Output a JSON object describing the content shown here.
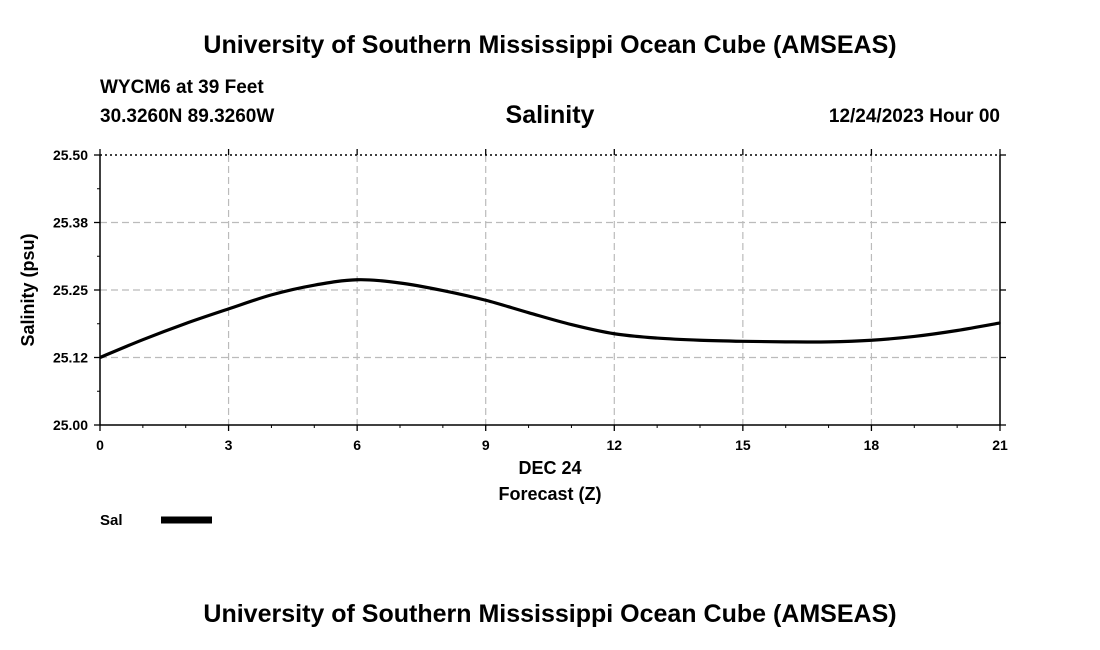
{
  "header": {
    "title": "University of Southern Mississippi Ocean Cube (AMSEAS)",
    "station_line": "WYCM6 at 39 Feet",
    "coords": "30.3260N  89.3260W",
    "datetime": "12/24/2023 Hour 00"
  },
  "footer": {
    "title": "University of Southern Mississippi Ocean Cube (AMSEAS)"
  },
  "chart_data": {
    "type": "line",
    "title": "Salinity",
    "xlabel": "Forecast (Z)",
    "xsublabel": "DEC 24",
    "ylabel": "Salinity (psu)",
    "xlim": [
      0,
      21
    ],
    "ylim": [
      25.0,
      25.5
    ],
    "xticks": [
      0,
      3,
      6,
      9,
      12,
      15,
      18,
      21
    ],
    "xtick_labels": [
      "0",
      "3",
      "6",
      "9",
      "12",
      "15",
      "18",
      "21"
    ],
    "yticks": [
      25.0,
      25.125,
      25.25,
      25.375,
      25.5
    ],
    "ytick_labels": [
      "25.00",
      "25.12",
      "25.25",
      "25.38",
      "25.50"
    ],
    "grid": true,
    "series": [
      {
        "name": "Sal",
        "color": "#000000",
        "x": [
          0,
          1,
          2,
          3,
          4,
          5,
          6,
          7,
          8,
          9,
          10,
          11,
          12,
          13,
          14,
          15,
          16,
          17,
          18,
          19,
          20,
          21
        ],
        "values": [
          25.125,
          25.158,
          25.188,
          25.215,
          25.241,
          25.259,
          25.269,
          25.263,
          25.249,
          25.231,
          25.208,
          25.186,
          25.169,
          25.161,
          25.157,
          25.155,
          25.154,
          25.154,
          25.157,
          25.164,
          25.175,
          25.189
        ]
      }
    ],
    "legend": {
      "label": "Sal",
      "placement": "bottom-left"
    }
  }
}
